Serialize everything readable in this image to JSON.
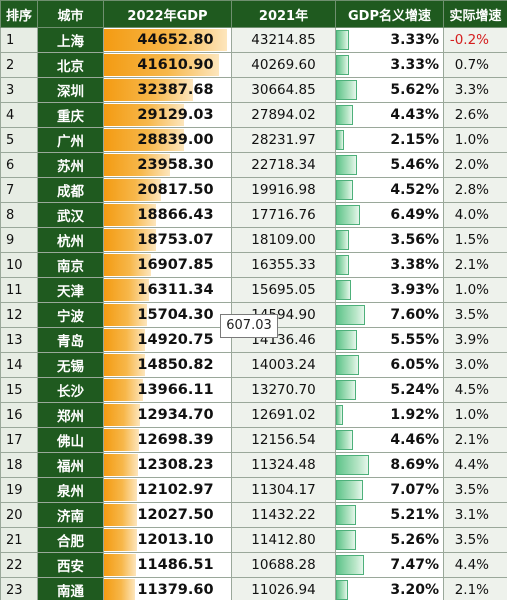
{
  "headers": {
    "rank": "排序",
    "city": "城市",
    "gdp2022": "2022年GDP",
    "gdp2021": "2021年",
    "nominal_growth": "GDP名义增速",
    "real_growth": "实际增速"
  },
  "tooltip": "607.03",
  "colors": {
    "header_bg": "#1f5a1f",
    "gdp_bar": "#f39b12",
    "growth_bar": "#5fc48a",
    "negative_text": "#d51e1e"
  },
  "rows": [
    {
      "rank": "1",
      "city": "上海",
      "gdp2022": "44652.80",
      "gdp2021": "43214.85",
      "nominal": "3.33%",
      "real": "-0.2%"
    },
    {
      "rank": "2",
      "city": "北京",
      "gdp2022": "41610.90",
      "gdp2021": "40269.60",
      "nominal": "3.33%",
      "real": "0.7%"
    },
    {
      "rank": "3",
      "city": "深圳",
      "gdp2022": "32387.68",
      "gdp2021": "30664.85",
      "nominal": "5.62%",
      "real": "3.3%"
    },
    {
      "rank": "4",
      "city": "重庆",
      "gdp2022": "29129.03",
      "gdp2021": "27894.02",
      "nominal": "4.43%",
      "real": "2.6%"
    },
    {
      "rank": "5",
      "city": "广州",
      "gdp2022": "28839.00",
      "gdp2021": "28231.97",
      "nominal": "2.15%",
      "real": "1.0%"
    },
    {
      "rank": "6",
      "city": "苏州",
      "gdp2022": "23958.30",
      "gdp2021": "22718.34",
      "nominal": "5.46%",
      "real": "2.0%"
    },
    {
      "rank": "7",
      "city": "成都",
      "gdp2022": "20817.50",
      "gdp2021": "19916.98",
      "nominal": "4.52%",
      "real": "2.8%"
    },
    {
      "rank": "8",
      "city": "武汉",
      "gdp2022": "18866.43",
      "gdp2021": "17716.76",
      "nominal": "6.49%",
      "real": "4.0%"
    },
    {
      "rank": "9",
      "city": "杭州",
      "gdp2022": "18753.07",
      "gdp2021": "18109.00",
      "nominal": "3.56%",
      "real": "1.5%"
    },
    {
      "rank": "10",
      "city": "南京",
      "gdp2022": "16907.85",
      "gdp2021": "16355.33",
      "nominal": "3.38%",
      "real": "2.1%"
    },
    {
      "rank": "11",
      "city": "天津",
      "gdp2022": "16311.34",
      "gdp2021": "15695.05",
      "nominal": "3.93%",
      "real": "1.0%"
    },
    {
      "rank": "12",
      "city": "宁波",
      "gdp2022": "15704.30",
      "gdp2021": "14594.90",
      "nominal": "7.60%",
      "real": "3.5%"
    },
    {
      "rank": "13",
      "city": "青岛",
      "gdp2022": "14920.75",
      "gdp2021": "14136.46",
      "nominal": "5.55%",
      "real": "3.9%"
    },
    {
      "rank": "14",
      "city": "无锡",
      "gdp2022": "14850.82",
      "gdp2021": "14003.24",
      "nominal": "6.05%",
      "real": "3.0%"
    },
    {
      "rank": "15",
      "city": "长沙",
      "gdp2022": "13966.11",
      "gdp2021": "13270.70",
      "nominal": "5.24%",
      "real": "4.5%"
    },
    {
      "rank": "16",
      "city": "郑州",
      "gdp2022": "12934.70",
      "gdp2021": "12691.02",
      "nominal": "1.92%",
      "real": "1.0%"
    },
    {
      "rank": "17",
      "city": "佛山",
      "gdp2022": "12698.39",
      "gdp2021": "12156.54",
      "nominal": "4.46%",
      "real": "2.1%"
    },
    {
      "rank": "18",
      "city": "福州",
      "gdp2022": "12308.23",
      "gdp2021": "11324.48",
      "nominal": "8.69%",
      "real": "4.4%"
    },
    {
      "rank": "19",
      "city": "泉州",
      "gdp2022": "12102.97",
      "gdp2021": "11304.17",
      "nominal": "7.07%",
      "real": "3.5%"
    },
    {
      "rank": "20",
      "city": "济南",
      "gdp2022": "12027.50",
      "gdp2021": "11432.22",
      "nominal": "5.21%",
      "real": "3.1%"
    },
    {
      "rank": "21",
      "city": "合肥",
      "gdp2022": "12013.10",
      "gdp2021": "11412.80",
      "nominal": "5.26%",
      "real": "3.5%"
    },
    {
      "rank": "22",
      "city": "西安",
      "gdp2022": "11486.51",
      "gdp2021": "10688.28",
      "nominal": "7.47%",
      "real": "4.4%"
    },
    {
      "rank": "23",
      "city": "南通",
      "gdp2022": "11379.60",
      "gdp2021": "11026.94",
      "nominal": "3.20%",
      "real": "2.1%"
    }
  ],
  "chart_data": {
    "type": "table",
    "columns": [
      "排序",
      "城市",
      "2022年GDP",
      "2021年",
      "GDP名义增速",
      "实际增速"
    ],
    "series": [
      {
        "name": "2022年GDP",
        "values": [
          44652.8,
          41610.9,
          32387.68,
          29129.03,
          28839.0,
          23958.3,
          20817.5,
          18866.43,
          18753.07,
          16907.85,
          16311.34,
          15704.3,
          14920.75,
          14850.82,
          13966.11,
          12934.7,
          12698.39,
          12308.23,
          12102.97,
          12027.5,
          12013.1,
          11486.51,
          11379.6
        ]
      },
      {
        "name": "GDP名义增速",
        "values": [
          3.33,
          3.33,
          5.62,
          4.43,
          2.15,
          5.46,
          4.52,
          6.49,
          3.56,
          3.38,
          3.93,
          7.6,
          5.55,
          6.05,
          5.24,
          1.92,
          4.46,
          8.69,
          7.07,
          5.21,
          5.26,
          7.47,
          3.2
        ]
      }
    ],
    "gdp_bar_max": 44652.8,
    "growth_bar_max": 8.69
  }
}
